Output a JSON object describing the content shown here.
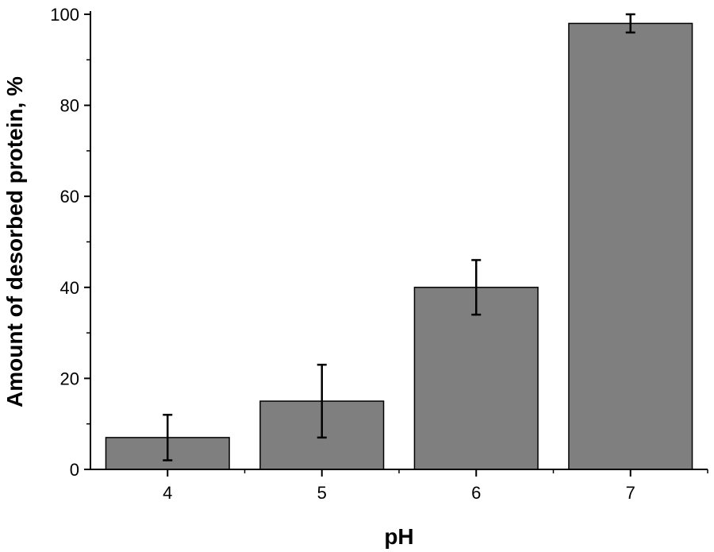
{
  "chart_data": {
    "type": "bar",
    "categories": [
      "4",
      "5",
      "6",
      "7"
    ],
    "values": [
      7,
      15,
      40,
      98
    ],
    "errors": [
      5,
      8,
      6,
      2
    ],
    "title": "",
    "xlabel": "pH",
    "ylabel": "Amount of desorbed protein, %",
    "ylim": [
      0,
      100
    ],
    "yticks": [
      0,
      20,
      40,
      60,
      80,
      100
    ],
    "ytick_labels": [
      "0",
      "20",
      "40",
      "60",
      "80",
      "100"
    ],
    "grid": false,
    "legend": "none",
    "colors": {
      "bar_fill": "#7f7f7f",
      "bar_stroke": "#000000",
      "axis": "#000000",
      "error_bar": "#000000"
    }
  }
}
